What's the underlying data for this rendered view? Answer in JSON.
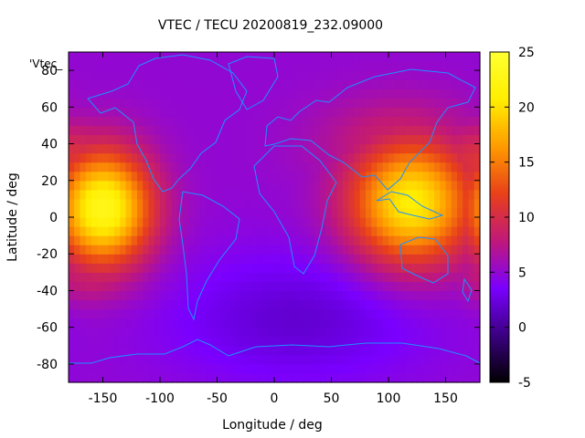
{
  "chart_data": {
    "type": "heatmap",
    "title": "VTEC / TECU 20200819_232.09000",
    "xlabel": "Longitude / deg",
    "ylabel": "Latitude / deg",
    "series_label": "'Vtec_",
    "xlim": [
      -180,
      180
    ],
    "ylim": [
      -90,
      90
    ],
    "xticks": [
      -150,
      -100,
      -50,
      0,
      50,
      100,
      150
    ],
    "yticks": [
      -80,
      -60,
      -40,
      -20,
      0,
      20,
      40,
      60,
      80
    ],
    "colorbar": {
      "range": [
        -5,
        25
      ],
      "ticks": [
        -5,
        0,
        5,
        10,
        15,
        20,
        25
      ],
      "palette": [
        "#000000",
        "#3a0080",
        "#7a00ff",
        "#c0187a",
        "#e8401a",
        "#ff9a00",
        "#ffee00",
        "#ffff30"
      ]
    },
    "grid": false,
    "coastline_color": "#1e90ff",
    "field": {
      "background_tecu": 5,
      "enhancements": [
        {
          "label": "pacific-crest",
          "lon": -150,
          "lat": 5,
          "peak_tecu": 23,
          "lon_spread": 30,
          "lat_spread": 22
        },
        {
          "label": "asia-crest",
          "lon": 120,
          "lat": 8,
          "peak_tecu": 21,
          "lon_spread": 38,
          "lat_spread": 24
        },
        {
          "label": "north-pacific-band",
          "lon": -175,
          "lat": 30,
          "peak_tecu": 11,
          "lon_spread": 40,
          "lat_spread": 15
        },
        {
          "label": "south-pacific-band",
          "lon": -160,
          "lat": -30,
          "peak_tecu": 9,
          "lon_spread": 35,
          "lat_spread": 12
        },
        {
          "label": "asia-north-band",
          "lon": 110,
          "lat": 40,
          "peak_tecu": 9,
          "lon_spread": 50,
          "lat_spread": 18
        },
        {
          "label": "australia-band",
          "lon": 145,
          "lat": -25,
          "peak_tecu": 6,
          "lon_spread": 35,
          "lat_spread": 15
        }
      ],
      "depressions": [
        {
          "label": "south-atlantic-low",
          "lon": 20,
          "lat": -55,
          "drop_tecu": 3,
          "lon_spread": 80,
          "lat_spread": 25
        }
      ]
    }
  }
}
